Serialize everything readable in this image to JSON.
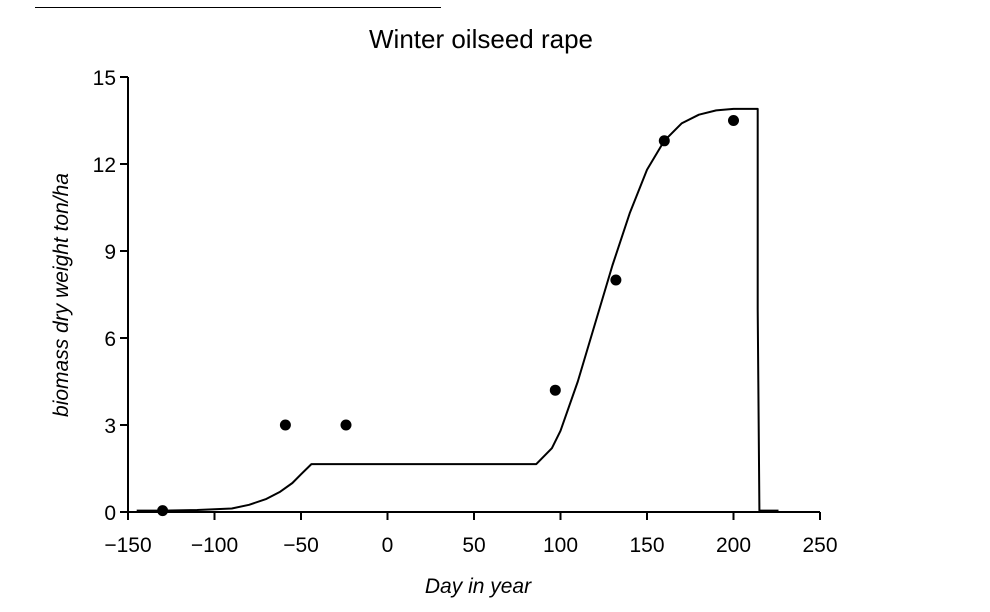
{
  "chart_data": {
    "type": "line",
    "title": "Winter oilseed rape",
    "xlabel": "Day  in  year",
    "ylabel": "biomass  dry  weight  ton/ha",
    "xlim": [
      -150,
      250
    ],
    "ylim": [
      0,
      15
    ],
    "xticks": [
      -150,
      -100,
      -50,
      0,
      50,
      100,
      150,
      200,
      250
    ],
    "yticks": [
      0,
      3,
      6,
      9,
      12,
      15
    ],
    "xtick_labels": [
      "−150",
      "−100",
      "−50",
      "0",
      "50",
      "100",
      "150",
      "200",
      "250"
    ],
    "ytick_labels": [
      "0",
      "3",
      "6",
      "9",
      "12",
      "15"
    ],
    "grid": false,
    "legend": "none",
    "series": [
      {
        "kind": "line",
        "x": [
          -145,
          -130,
          -110,
          -90,
          -80,
          -70,
          -62,
          -55,
          -50,
          -44,
          0,
          40,
          86,
          95,
          100,
          110,
          120,
          130,
          140,
          150,
          160,
          170,
          180,
          190,
          200,
          214,
          214,
          215,
          226
        ],
        "y": [
          0.05,
          0.05,
          0.07,
          0.12,
          0.25,
          0.45,
          0.7,
          1.0,
          1.3,
          1.65,
          1.65,
          1.65,
          1.65,
          2.2,
          2.8,
          4.5,
          6.5,
          8.5,
          10.3,
          11.8,
          12.8,
          13.4,
          13.7,
          13.85,
          13.9,
          13.9,
          7.0,
          0.05,
          0.05
        ],
        "color": "#000000"
      },
      {
        "kind": "scatter",
        "x": [
          -130,
          -59,
          -24,
          97,
          132,
          160,
          200
        ],
        "y": [
          0.05,
          3.0,
          3.0,
          4.2,
          8.0,
          12.8,
          13.5
        ],
        "color": "#000000"
      }
    ]
  }
}
